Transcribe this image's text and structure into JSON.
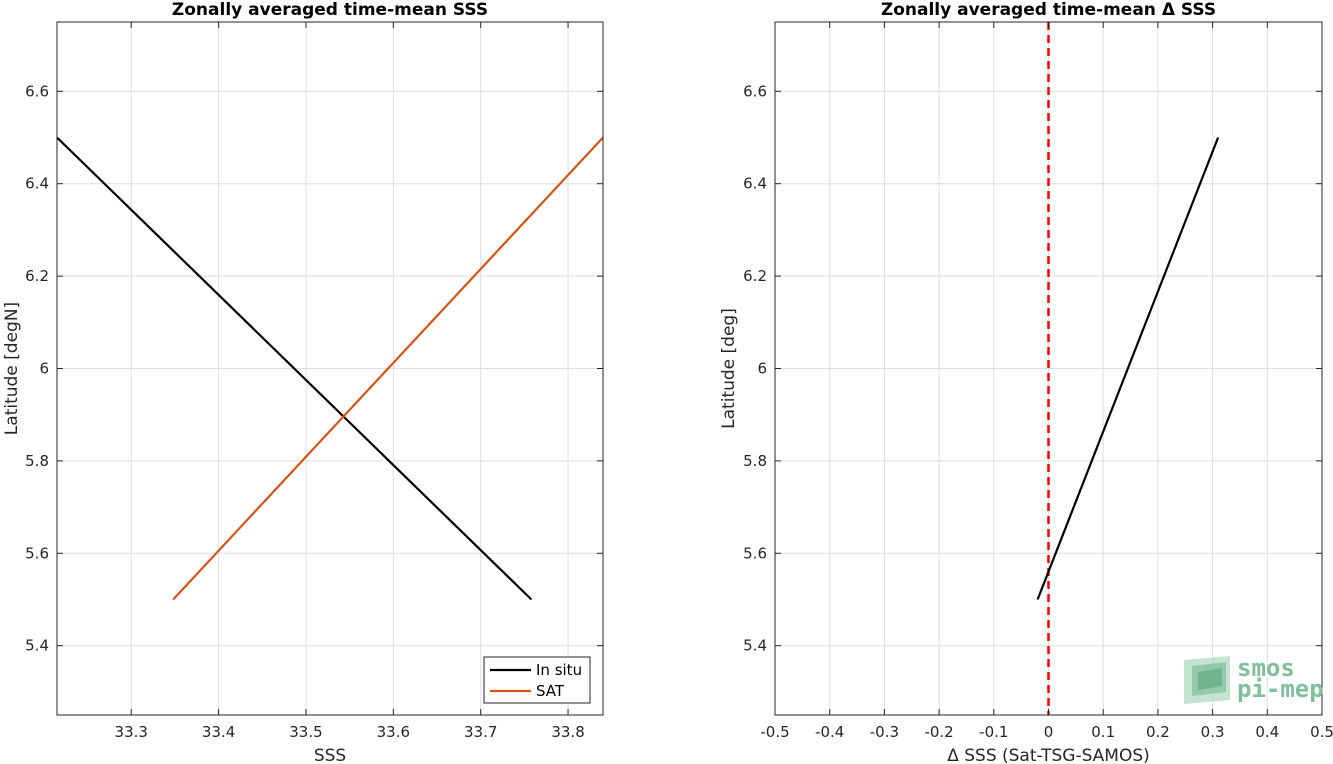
{
  "chart_data": [
    {
      "type": "line",
      "title": "Zonally averaged time-mean SSS",
      "xlabel": "SSS",
      "ylabel": "Latitude [degN]",
      "xlim": [
        33.215,
        33.84
      ],
      "ylim": [
        5.25,
        6.75
      ],
      "xticks": [
        33.3,
        33.4,
        33.5,
        33.6,
        33.7,
        33.8
      ],
      "yticks": [
        5.4,
        5.6,
        5.8,
        6.0,
        6.2,
        6.4,
        6.6
      ],
      "xtick_labels": [
        "33.3",
        "33.4",
        "33.5",
        "33.6",
        "33.7",
        "33.8"
      ],
      "ytick_labels": [
        "5.4",
        "5.6",
        "5.8",
        "6",
        "6.2",
        "6.4",
        "6.6"
      ],
      "grid": true,
      "legend_position": "bottom-right",
      "series": [
        {
          "name": "In situ",
          "color": "#000000",
          "x": [
            33.758,
            33.215
          ],
          "y": [
            5.5,
            6.5
          ]
        },
        {
          "name": "SAT",
          "color": "#D95319",
          "x": [
            33.348,
            33.84
          ],
          "y": [
            5.5,
            6.5
          ]
        }
      ]
    },
    {
      "type": "line",
      "title": "Zonally averaged time-mean Δ SSS",
      "xlabel": "Δ SSS (Sat-TSG-SAMOS)",
      "ylabel": "Latitude [deg]",
      "xlim": [
        -0.5,
        0.5
      ],
      "ylim": [
        5.25,
        6.75
      ],
      "xticks": [
        -0.5,
        -0.4,
        -0.3,
        -0.2,
        -0.1,
        0,
        0.1,
        0.2,
        0.3,
        0.4,
        0.5
      ],
      "yticks": [
        5.4,
        5.6,
        5.8,
        6.0,
        6.2,
        6.4,
        6.6
      ],
      "xtick_labels": [
        "-0.5",
        "-0.4",
        "-0.3",
        "-0.2",
        "-0.1",
        "0",
        "0.1",
        "0.2",
        "0.3",
        "0.4",
        "0.5"
      ],
      "ytick_labels": [
        "5.4",
        "5.6",
        "5.8",
        "6",
        "6.2",
        "6.4",
        "6.6"
      ],
      "grid": true,
      "reference_line": {
        "x": 0,
        "color": "#FF0000",
        "style": "dashed"
      },
      "series": [
        {
          "color": "#000000",
          "x": [
            -0.02,
            0.31
          ],
          "y": [
            5.5,
            6.5
          ]
        }
      ]
    }
  ],
  "logo": {
    "line1": "smos",
    "line2": "pi-mep",
    "color": "#7fbf99"
  }
}
